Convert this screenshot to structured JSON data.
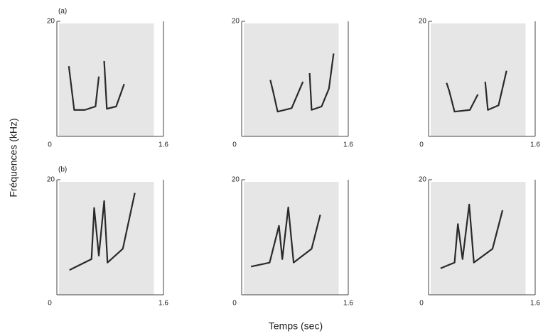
{
  "xlabel": "Temps (sec)",
  "ylabel": "Fréquences (kHz)",
  "chart_data": [
    {
      "type": "line",
      "label": "(a)",
      "color": "#2a2a2a",
      "xlim": [
        0,
        1.6
      ],
      "ylim": [
        0,
        20
      ],
      "xticks": [
        0,
        1.6
      ],
      "yticks": [
        20
      ],
      "series": [
        {
          "x": [
            0.18,
            0.26,
            0.42,
            0.58,
            0.63
          ],
          "values": [
            12.2,
            4.6,
            4.6,
            5.2,
            10.4
          ]
        },
        {
          "x": [
            0.71,
            0.75,
            0.89,
            1.01
          ],
          "values": [
            13.1,
            4.8,
            5.2,
            9.1
          ]
        }
      ]
    },
    {
      "type": "line",
      "color": "#2a2a2a",
      "xlim": [
        0,
        1.6
      ],
      "ylim": [
        0,
        20
      ],
      "xticks": [
        0,
        1.6
      ],
      "yticks": [
        20
      ],
      "series": [
        {
          "x": [
            0.43,
            0.47,
            0.54,
            0.75,
            0.92
          ],
          "values": [
            9.8,
            7.9,
            4.3,
            4.9,
            9.5
          ]
        },
        {
          "x": [
            1.02,
            1.05,
            1.2,
            1.31,
            1.38
          ],
          "values": [
            11,
            4.6,
            5.2,
            8.3,
            14.4
          ]
        }
      ]
    },
    {
      "type": "line",
      "color": "#2a2a2a",
      "xlim": [
        0,
        1.6
      ],
      "ylim": [
        0,
        20
      ],
      "xticks": [
        0,
        1.6
      ],
      "yticks": [
        20
      ],
      "series": [
        {
          "x": [
            0.27,
            0.31,
            0.39,
            0.62,
            0.74
          ],
          "values": [
            9.3,
            7.9,
            4.3,
            4.6,
            7.3
          ]
        },
        {
          "x": [
            0.85,
            0.89,
            1.05,
            1.17
          ],
          "values": [
            9.5,
            4.6,
            5.4,
            11.4
          ]
        }
      ]
    },
    {
      "type": "line",
      "label": "(b)",
      "color": "#2a2a2a",
      "xlim": [
        0,
        1.6
      ],
      "ylim": [
        0,
        20
      ],
      "xticks": [
        0,
        1.6
      ],
      "yticks": [
        20
      ],
      "series": [
        {
          "x": [
            0.19,
            0.52,
            0.56,
            0.63,
            0.71,
            0.76,
            0.99,
            1.17
          ],
          "values": [
            4.3,
            6.2,
            15.1,
            6.8,
            16.3,
            5.6,
            8.0,
            17.7
          ]
        }
      ]
    },
    {
      "type": "line",
      "color": "#2a2a2a",
      "xlim": [
        0,
        1.6
      ],
      "ylim": [
        0,
        20
      ],
      "xticks": [
        0,
        1.6
      ],
      "yticks": [
        20
      ],
      "series": [
        {
          "x": [
            0.14,
            0.42,
            0.56,
            0.61,
            0.7,
            0.78,
            1.05,
            1.18
          ],
          "values": [
            4.9,
            5.6,
            12,
            6.2,
            15.2,
            5.6,
            8,
            13.9
          ]
        }
      ]
    },
    {
      "type": "line",
      "color": "#2a2a2a",
      "xlim": [
        0,
        1.6
      ],
      "ylim": [
        0,
        20
      ],
      "xticks": [
        0,
        1.6
      ],
      "yticks": [
        20
      ],
      "series": [
        {
          "x": [
            0.18,
            0.39,
            0.44,
            0.51,
            0.61,
            0.68,
            0.96,
            1.11
          ],
          "values": [
            4.6,
            5.6,
            12.3,
            6.2,
            15.7,
            5.6,
            8.0,
            14.7
          ]
        }
      ]
    }
  ]
}
